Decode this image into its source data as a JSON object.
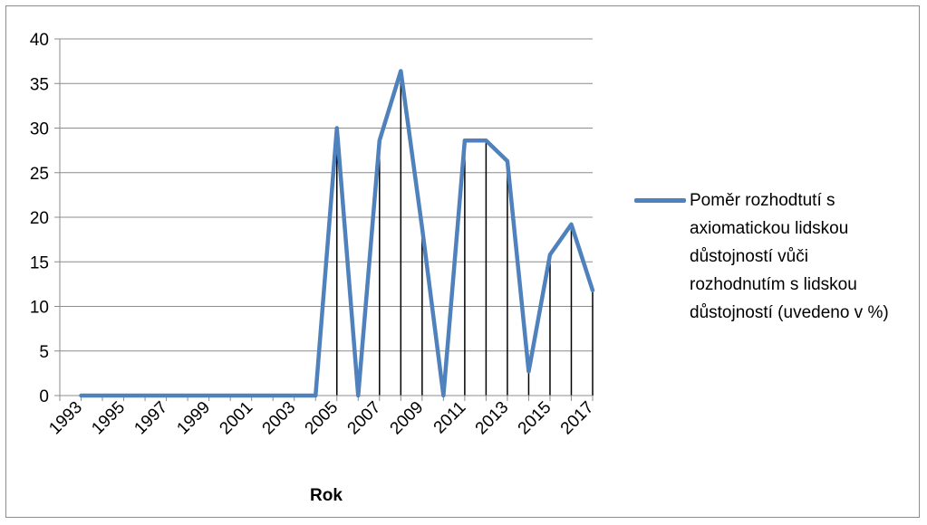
{
  "chart_data": {
    "type": "line",
    "x": [
      "1993",
      "1994",
      "1995",
      "1996",
      "1997",
      "1998",
      "1999",
      "2000",
      "2001",
      "2002",
      "2003",
      "2004",
      "2005",
      "2006",
      "2007",
      "2008",
      "2009",
      "2010",
      "2011",
      "2012",
      "2013",
      "2014",
      "2015",
      "2016",
      "2017"
    ],
    "x_tick_labels": [
      "1993",
      "1995",
      "1997",
      "1999",
      "2001",
      "2003",
      "2005",
      "2007",
      "2009",
      "2011",
      "2013",
      "2015",
      "2017"
    ],
    "series": [
      {
        "name": "Poměr rozhodtutí s axiomatickou lidskou důstojností vůči rozhodnutím s lidskou důstojností (uvedeno v %)",
        "values": [
          0,
          0,
          0,
          0,
          0,
          0,
          0,
          0,
          0,
          0,
          0,
          0,
          30,
          0,
          28.6,
          36.4,
          18.8,
          0,
          28.6,
          28.6,
          26.3,
          2.7,
          15.8,
          19.2,
          11.8
        ]
      }
    ],
    "xlabel": "Rok",
    "ylabel": "",
    "ylim": [
      0,
      40
    ],
    "yticks": [
      0,
      5,
      10,
      15,
      20,
      25,
      30,
      35,
      40
    ],
    "grid": true,
    "drop_lines": true,
    "legend_position": "right",
    "colors": {
      "series": "#4f81bd",
      "grid": "#8c8c8c",
      "drop_line": "#000000"
    }
  }
}
